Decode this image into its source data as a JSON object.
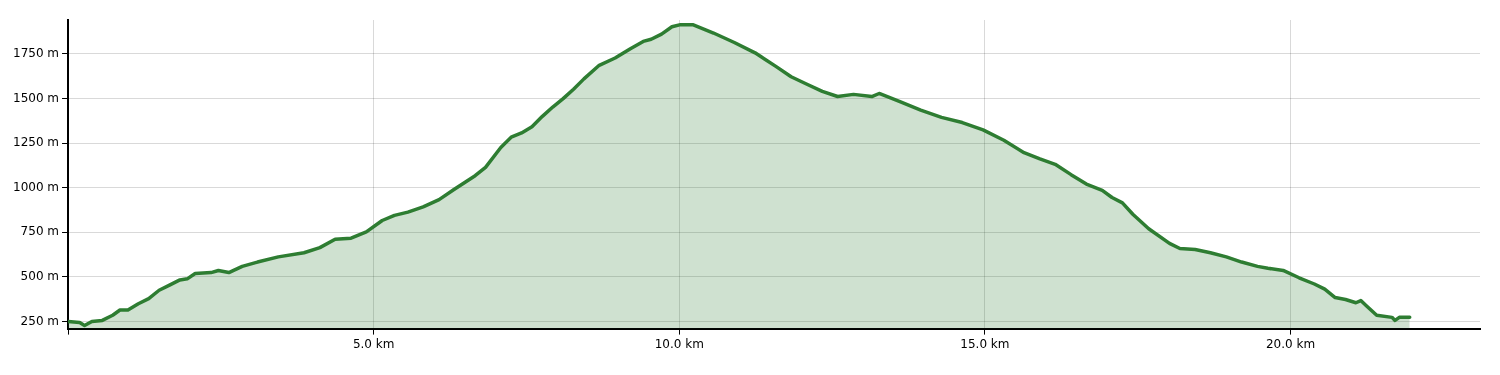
{
  "chart_data": {
    "type": "area",
    "x": [
      0,
      0.19,
      0.27,
      0.39,
      0.56,
      0.73,
      0.85,
      0.98,
      1.15,
      1.32,
      1.49,
      1.66,
      1.83,
      1.95,
      2.08,
      2.34,
      2.46,
      2.63,
      2.85,
      3.1,
      3.44,
      3.86,
      4.12,
      4.37,
      4.63,
      4.88,
      5.14,
      5.34,
      5.56,
      5.81,
      6.07,
      6.32,
      6.66,
      6.83,
      7.08,
      7.25,
      7.42,
      7.59,
      7.76,
      7.93,
      8.1,
      8.27,
      8.44,
      8.69,
      8.95,
      9.2,
      9.41,
      9.54,
      9.71,
      9.88,
      10.02,
      10.22,
      10.56,
      10.9,
      11.24,
      11.58,
      11.83,
      12.08,
      12.34,
      12.59,
      12.85,
      13.15,
      13.27,
      13.61,
      13.95,
      14.29,
      14.63,
      14.97,
      15.31,
      15.64,
      15.9,
      16.15,
      16.41,
      16.66,
      16.92,
      17.08,
      17.25,
      17.42,
      17.68,
      18.02,
      18.19,
      18.44,
      18.69,
      18.95,
      19.2,
      19.46,
      19.63,
      19.88,
      20.14,
      20.39,
      20.56,
      20.73,
      20.9,
      21.07,
      21.15,
      21.24,
      21.41,
      21.66,
      21.71,
      21.78,
      21.95
    ],
    "series": [
      {
        "color": "#2e7d32",
        "values": [
          250,
          244,
          227,
          250,
          256,
          285,
          314,
          314,
          349,
          378,
          425,
          454,
          483,
          489,
          519,
          524,
          536,
          524,
          559,
          583,
          612,
          635,
          664,
          711,
          717,
          752,
          816,
          845,
          863,
          892,
          933,
          991,
          1067,
          1114,
          1225,
          1283,
          1307,
          1342,
          1400,
          1452,
          1499,
          1552,
          1610,
          1686,
          1727,
          1779,
          1820,
          1832,
          1861,
          1902,
          1914,
          1914,
          1867,
          1814,
          1756,
          1680,
          1622,
          1581,
          1540,
          1511,
          1523,
          1511,
          1528,
          1482,
          1435,
          1394,
          1365,
          1324,
          1266,
          1196,
          1161,
          1131,
          1073,
          1020,
          985,
          945,
          915,
          851,
          770,
          688,
          659,
          653,
          635,
          612,
          583,
          559,
          548,
          536,
          495,
          460,
          431,
          384,
          373,
          355,
          367,
          338,
          285,
          273,
          256,
          273,
          273
        ]
      }
    ],
    "xlim": [
      0,
      23.1
    ],
    "ylim": [
      210,
      1940
    ],
    "xticks": [
      {
        "value": 0,
        "label": null
      },
      {
        "value": 5,
        "label": "5.0 km"
      },
      {
        "value": 10,
        "label": "10.0 km"
      },
      {
        "value": 15,
        "label": "15.0 km"
      },
      {
        "value": 20,
        "label": "20.0 km"
      }
    ],
    "yticks": [
      {
        "value": 250,
        "label": "250 m"
      },
      {
        "value": 500,
        "label": "500 m"
      },
      {
        "value": 750,
        "label": "750 m"
      },
      {
        "value": 1000,
        "label": "1000 m"
      },
      {
        "value": 1250,
        "label": "1250 m"
      },
      {
        "value": 1500,
        "label": "1500 m"
      },
      {
        "value": 1750,
        "label": "1750 m"
      }
    ],
    "grid": true,
    "legend": false
  }
}
